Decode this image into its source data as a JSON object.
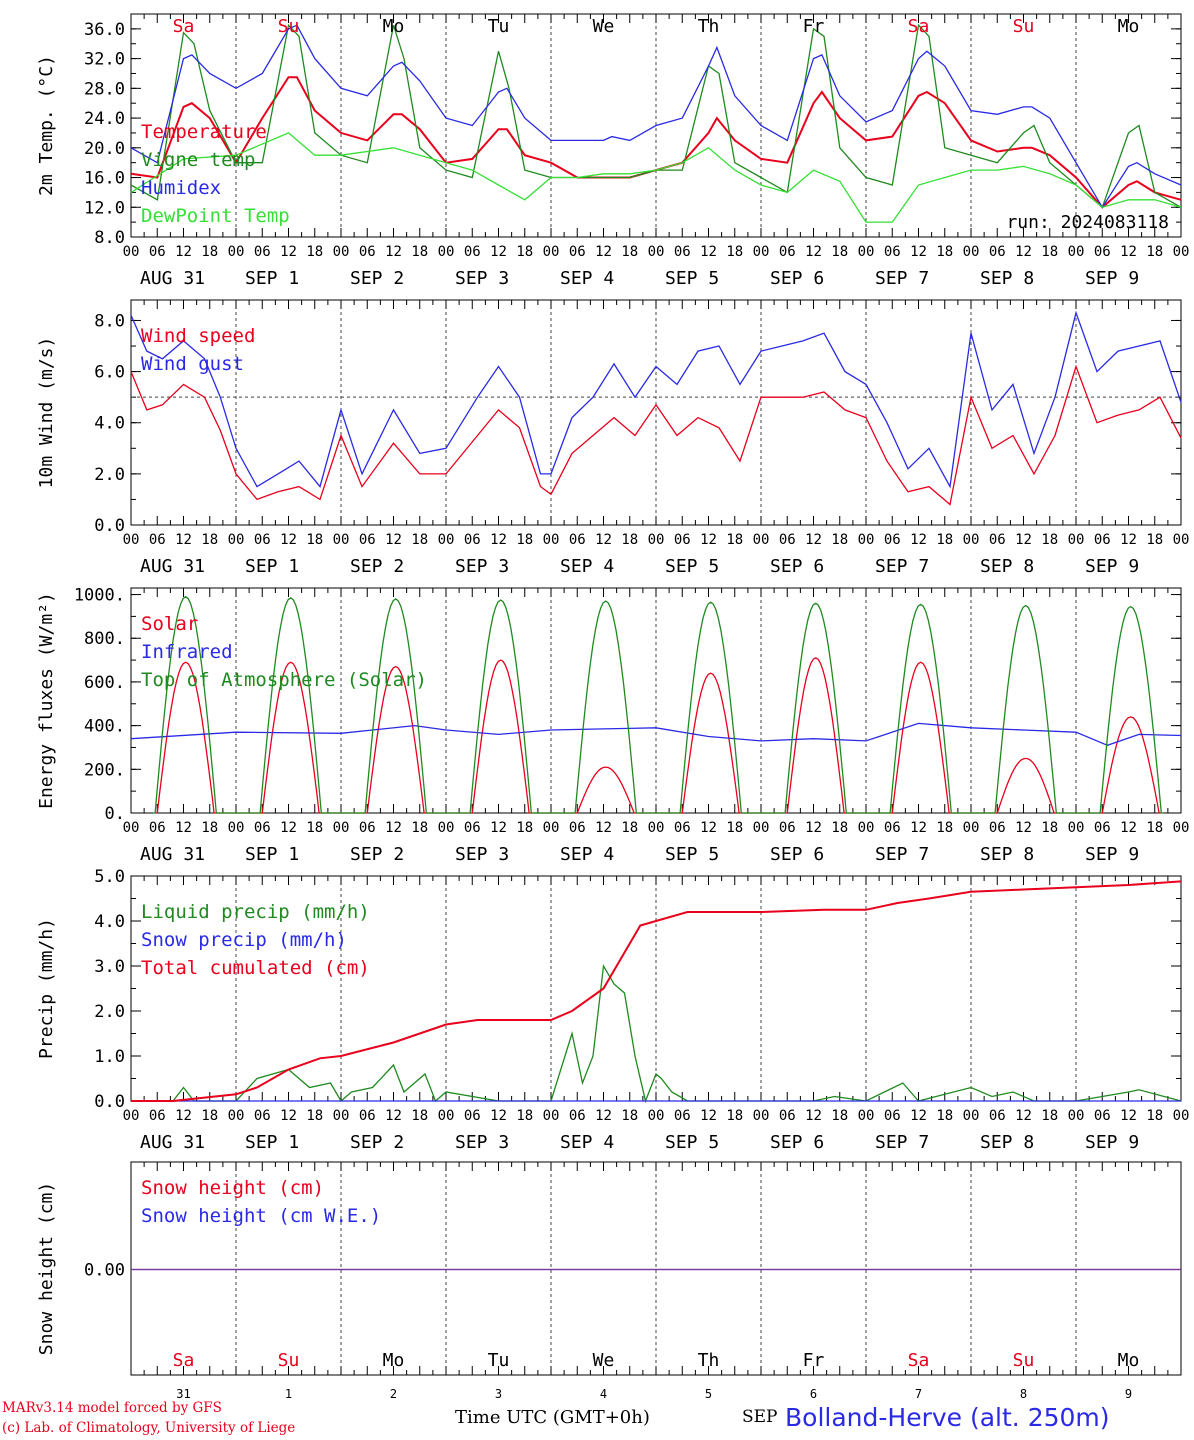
{
  "run_label": "run: 2024083118",
  "footer": {
    "credit_line1": "MARv3.14 model forced by GFS",
    "credit_line2": "(c) Lab. of Climatology, University of Liege",
    "x_caption": "Time UTC (GMT+0h)",
    "month_label": "SEP",
    "station": "Bolland-Herve (alt. 250m)"
  },
  "colors": {
    "red": "#e8001c",
    "darkgreen": "#1f8a1f",
    "blue": "#2a2ae6",
    "lightgreen": "#36e036",
    "purple": "#7a3a9a"
  },
  "chart_data": [
    {
      "type": "line",
      "ylabel": "2m Temp. (°C)",
      "ylim": [
        8,
        38
      ],
      "yticks": [
        "36.0",
        "32.0",
        "28.0",
        "24.0",
        "20.0",
        "16.0",
        "12.0",
        "8.0"
      ],
      "hour_ticks": [
        "00",
        "06",
        "12",
        "18"
      ],
      "date_labels": [
        "AUG 31",
        "SEP  1",
        "SEP  2",
        "SEP  3",
        "SEP  4",
        "SEP  5",
        "SEP  6",
        "SEP  7",
        "SEP  8",
        "SEP  9"
      ],
      "weekdays": [
        "Sa",
        "Su",
        "Mo",
        "Tu",
        "We",
        "Th",
        "Fr",
        "Sa",
        "Su",
        "Mo"
      ],
      "weekend_flags": [
        true,
        true,
        false,
        false,
        false,
        false,
        false,
        true,
        true,
        false
      ],
      "series": [
        {
          "name": "Temperature",
          "color": "#e8001c",
          "x": [
            0,
            0.25,
            0.5,
            0.58,
            0.75,
            1,
            1.25,
            1.5,
            1.58,
            1.75,
            2,
            2.25,
            2.5,
            2.58,
            2.75,
            3,
            3.25,
            3.5,
            3.58,
            3.75,
            4,
            4.25,
            4.5,
            4.58,
            4.75,
            5,
            5.25,
            5.5,
            5.58,
            5.75,
            6,
            6.25,
            6.5,
            6.58,
            6.75,
            7,
            7.25,
            7.5,
            7.58,
            7.75,
            8,
            8.25,
            8.5,
            8.58,
            8.75,
            9,
            9.25,
            9.5,
            9.58,
            9.75,
            10
          ],
          "y": [
            16.5,
            16,
            25.5,
            26,
            24,
            18,
            24,
            29.5,
            29.5,
            25,
            22,
            21,
            24.5,
            24.5,
            22.5,
            18,
            18.5,
            22.5,
            22.5,
            19,
            18,
            16,
            16,
            16,
            16,
            17,
            18,
            22,
            24,
            21,
            18.5,
            18,
            26,
            27.5,
            24,
            21,
            21.5,
            27,
            27.5,
            26,
            21,
            19.5,
            20,
            20,
            19,
            16,
            12,
            15,
            15.5,
            14,
            13
          ]
        },
        {
          "name": "Vigne temp",
          "color": "#1f8a1f",
          "x": [
            0,
            0.25,
            0.5,
            0.6,
            0.75,
            1,
            1.25,
            1.5,
            1.6,
            1.75,
            2,
            2.25,
            2.5,
            2.6,
            2.75,
            3,
            3.25,
            3.5,
            3.6,
            3.75,
            4,
            4.25,
            4.5,
            4.6,
            4.75,
            5,
            5.25,
            5.5,
            5.6,
            5.75,
            6,
            6.25,
            6.5,
            6.6,
            6.75,
            7,
            7.25,
            7.5,
            7.6,
            7.75,
            8,
            8.25,
            8.5,
            8.6,
            8.75,
            9,
            9.25,
            9.5,
            9.6,
            9.75,
            10
          ],
          "y": [
            15,
            13,
            35.5,
            34,
            25,
            18,
            18,
            36.5,
            35,
            22,
            19,
            18,
            36.5,
            32,
            20,
            17,
            16,
            33,
            28,
            17,
            16,
            16,
            16,
            16,
            16,
            17,
            17,
            31,
            30,
            18,
            16,
            14,
            36,
            35,
            20,
            16,
            15,
            36.5,
            35,
            20,
            19,
            18,
            22,
            23,
            18,
            15,
            12,
            22,
            23,
            14,
            12
          ]
        },
        {
          "name": "Humidex",
          "color": "#2a2ae6",
          "x": [
            0,
            0.25,
            0.5,
            0.58,
            0.75,
            1,
            1.25,
            1.5,
            1.58,
            1.75,
            2,
            2.25,
            2.5,
            2.58,
            2.75,
            3,
            3.25,
            3.5,
            3.58,
            3.75,
            4,
            4.25,
            4.5,
            4.58,
            4.75,
            5,
            5.25,
            5.5,
            5.58,
            5.75,
            6,
            6.25,
            6.5,
            6.58,
            6.75,
            7,
            7.25,
            7.5,
            7.58,
            7.75,
            8,
            8.25,
            8.5,
            8.58,
            8.75,
            9,
            9.25,
            9.5,
            9.58,
            9.75,
            10
          ],
          "y": [
            20,
            18,
            32,
            32.5,
            30,
            28,
            30,
            36,
            36.5,
            32,
            28,
            27,
            31,
            31.5,
            29,
            24,
            23,
            27.5,
            28,
            24,
            21,
            21,
            21,
            21.5,
            21,
            23,
            24,
            31,
            33.5,
            27,
            23,
            21,
            32,
            32.5,
            27,
            23.5,
            25,
            32,
            33,
            31,
            25,
            24.5,
            25.5,
            25.5,
            24,
            18,
            12,
            17.5,
            18,
            16.5,
            15
          ]
        },
        {
          "name": "DewPoint Temp",
          "color": "#36e036",
          "x": [
            0,
            0.5,
            1,
            1.5,
            1.75,
            2,
            2.5,
            2.75,
            3,
            3.25,
            3.5,
            3.75,
            4,
            4.25,
            4.5,
            4.75,
            5,
            5.25,
            5.5,
            5.75,
            6,
            6.25,
            6.5,
            6.75,
            7,
            7.25,
            7.5,
            7.75,
            8,
            8.25,
            8.5,
            8.75,
            9,
            9.25,
            9.5,
            9.75,
            10
          ],
          "y": [
            14,
            18.5,
            19,
            22,
            19,
            19,
            20,
            19,
            18,
            17,
            15,
            13,
            16,
            16,
            16.5,
            16.5,
            17,
            18,
            20,
            17,
            15,
            14,
            17,
            15.5,
            10,
            10,
            15,
            16,
            17,
            17,
            17.5,
            16.5,
            15,
            12,
            13,
            13,
            12
          ]
        }
      ]
    },
    {
      "type": "line",
      "ylabel": "10m Wind (m/s)",
      "ylim": [
        0,
        8.8
      ],
      "yticks": [
        "8.0",
        "6.0",
        "4.0",
        "2.0",
        "0.0"
      ],
      "reference_line": 5.0,
      "series": [
        {
          "name": "Wind speed",
          "color": "#e8001c",
          "x": [
            0,
            0.15,
            0.3,
            0.5,
            0.7,
            0.85,
            1,
            1.2,
            1.4,
            1.6,
            1.8,
            2,
            2.2,
            2.5,
            2.75,
            3,
            3.3,
            3.5,
            3.7,
            3.9,
            4,
            4.2,
            4.4,
            4.6,
            4.8,
            5,
            5.2,
            5.4,
            5.6,
            5.8,
            6,
            6.2,
            6.4,
            6.6,
            6.8,
            7,
            7.2,
            7.4,
            7.6,
            7.8,
            8,
            8.2,
            8.4,
            8.6,
            8.8,
            9,
            9.2,
            9.4,
            9.6,
            9.8,
            10
          ],
          "y": [
            6,
            4.5,
            4.7,
            5.5,
            5,
            3.7,
            2,
            1,
            1.3,
            1.5,
            1,
            3.5,
            1.5,
            3.2,
            2,
            2,
            3.5,
            4.5,
            3.8,
            1.5,
            1.2,
            2.8,
            3.5,
            4.2,
            3.5,
            4.7,
            3.5,
            4.2,
            3.8,
            2.5,
            5,
            5,
            5,
            5.2,
            4.5,
            4.2,
            2.5,
            1.3,
            1.5,
            0.8,
            5,
            3,
            3.5,
            2,
            3.5,
            6.2,
            4,
            4.3,
            4.5,
            5,
            3.4
          ]
        },
        {
          "name": "Wind gust",
          "color": "#2a2ae6",
          "x": [
            0,
            0.15,
            0.3,
            0.5,
            0.7,
            0.85,
            1,
            1.2,
            1.4,
            1.6,
            1.8,
            2,
            2.2,
            2.5,
            2.75,
            3,
            3.3,
            3.5,
            3.7,
            3.9,
            4,
            4.2,
            4.4,
            4.6,
            4.8,
            5,
            5.2,
            5.4,
            5.6,
            5.8,
            6,
            6.2,
            6.4,
            6.6,
            6.8,
            7,
            7.2,
            7.4,
            7.6,
            7.8,
            8,
            8.2,
            8.4,
            8.6,
            8.8,
            9,
            9.2,
            9.4,
            9.6,
            9.8,
            10
          ],
          "y": [
            8.2,
            6.8,
            6.5,
            7.2,
            6.5,
            5,
            3,
            1.5,
            2,
            2.5,
            1.5,
            4.5,
            2,
            4.5,
            2.8,
            3,
            5,
            6.2,
            5,
            2,
            2,
            4.2,
            5,
            6.3,
            5,
            6.2,
            5.5,
            6.8,
            7,
            5.5,
            6.8,
            7,
            7.2,
            7.5,
            6,
            5.5,
            4,
            2.2,
            3,
            1.5,
            7.5,
            4.5,
            5.5,
            2.8,
            5,
            8.3,
            6,
            6.8,
            7,
            7.2,
            4.8
          ]
        }
      ]
    },
    {
      "type": "line",
      "ylabel": "Energy fluxes (W/m²)",
      "ylim": [
        0,
        1030
      ],
      "yticks": [
        "1000.",
        "800.",
        "600.",
        "400.",
        "200.",
        "0."
      ],
      "series": [
        {
          "name": "Solar",
          "color": "#e8001c",
          "peak_hour": 12.5,
          "half_width_hours": 6.5,
          "daily_peaks": [
            690,
            690,
            670,
            700,
            210,
            640,
            710,
            690,
            250,
            440
          ]
        },
        {
          "name": "Infrared",
          "color": "#2a2ae6",
          "x": [
            0,
            1,
            2,
            2.7,
            3,
            3.5,
            4,
            4.5,
            5,
            5.5,
            6,
            6.5,
            7,
            7.5,
            8,
            8.5,
            9,
            9.3,
            9.6,
            10
          ],
          "y": [
            340,
            370,
            365,
            400,
            380,
            360,
            380,
            385,
            390,
            350,
            330,
            340,
            330,
            410,
            390,
            380,
            370,
            310,
            360,
            355
          ]
        },
        {
          "name": "Top of Atmosphere (Solar)",
          "color": "#1f8a1f",
          "peak_hour": 12.5,
          "half_width_hours": 7,
          "daily_peaks": [
            990,
            985,
            980,
            975,
            970,
            965,
            960,
            955,
            950,
            945
          ]
        }
      ]
    },
    {
      "type": "line",
      "ylabel": "Precip (mm/h)",
      "ylim": [
        0,
        5
      ],
      "yticks": [
        "5.0",
        "4.0",
        "3.0",
        "2.0",
        "1.0",
        "0.0"
      ],
      "series": [
        {
          "name": "Liquid precip (mm/h)",
          "color": "#1f8a1f",
          "x": [
            0,
            0.4,
            0.5,
            0.6,
            1,
            1.2,
            1.5,
            1.7,
            1.9,
            2,
            2.1,
            2.3,
            2.5,
            2.6,
            2.8,
            2.9,
            3,
            3.5,
            3.8,
            4,
            4.2,
            4.3,
            4.4,
            4.5,
            4.6,
            4.7,
            4.8,
            4.9,
            5,
            5.05,
            5.15,
            5.3,
            6,
            6.5,
            6.7,
            7,
            7.35,
            7.5,
            8,
            8.2,
            8.4,
            8.6,
            9,
            9.5,
            9.6,
            10
          ],
          "y": [
            0,
            0,
            0.3,
            0,
            0,
            0.5,
            0.7,
            0.3,
            0.4,
            0,
            0.2,
            0.3,
            0.8,
            0.2,
            0.6,
            0,
            0.2,
            0,
            0,
            0,
            1.5,
            0.4,
            1,
            3,
            2.6,
            2.4,
            1,
            0,
            0.6,
            0.5,
            0.2,
            0,
            0,
            0,
            0.1,
            0,
            0.4,
            0,
            0.3,
            0.1,
            0.2,
            0,
            0,
            0.2,
            0.25,
            0
          ]
        },
        {
          "name": "Snow precip (mm/h)",
          "color": "#2a2ae6",
          "x": [
            0,
            10
          ],
          "y": [
            0,
            0
          ]
        },
        {
          "name": "Total cumulated (cm)",
          "color": "#e8001c",
          "x": [
            0,
            0.4,
            1,
            1.2,
            1.5,
            1.8,
            2,
            2.5,
            3,
            3.3,
            4,
            4.2,
            4.5,
            4.7,
            4.85,
            5,
            5.3,
            6,
            6.6,
            7,
            7.3,
            7.6,
            8,
            8.5,
            9,
            9.5,
            10
          ],
          "y": [
            0,
            0,
            0.15,
            0.3,
            0.7,
            0.95,
            1,
            1.3,
            1.7,
            1.8,
            1.8,
            2,
            2.5,
            3.3,
            3.9,
            4,
            4.2,
            4.2,
            4.25,
            4.25,
            4.4,
            4.5,
            4.65,
            4.7,
            4.75,
            4.8,
            4.88
          ]
        }
      ]
    },
    {
      "type": "line",
      "ylabel": "Snow height (cm)",
      "yticks": [
        "0.00"
      ],
      "series": [
        {
          "name": "Snow height (cm)",
          "color": "#e8001c",
          "x": [
            0,
            10
          ],
          "y": [
            0,
            0
          ]
        },
        {
          "name": "Snow height (cm W.E.)",
          "color": "#2a2ae6",
          "x": [
            0,
            10
          ],
          "y": [
            0,
            0
          ]
        }
      ],
      "day_numbers": [
        "31",
        "1",
        "2",
        "3",
        "4",
        "5",
        "6",
        "7",
        "8",
        "9"
      ]
    }
  ]
}
